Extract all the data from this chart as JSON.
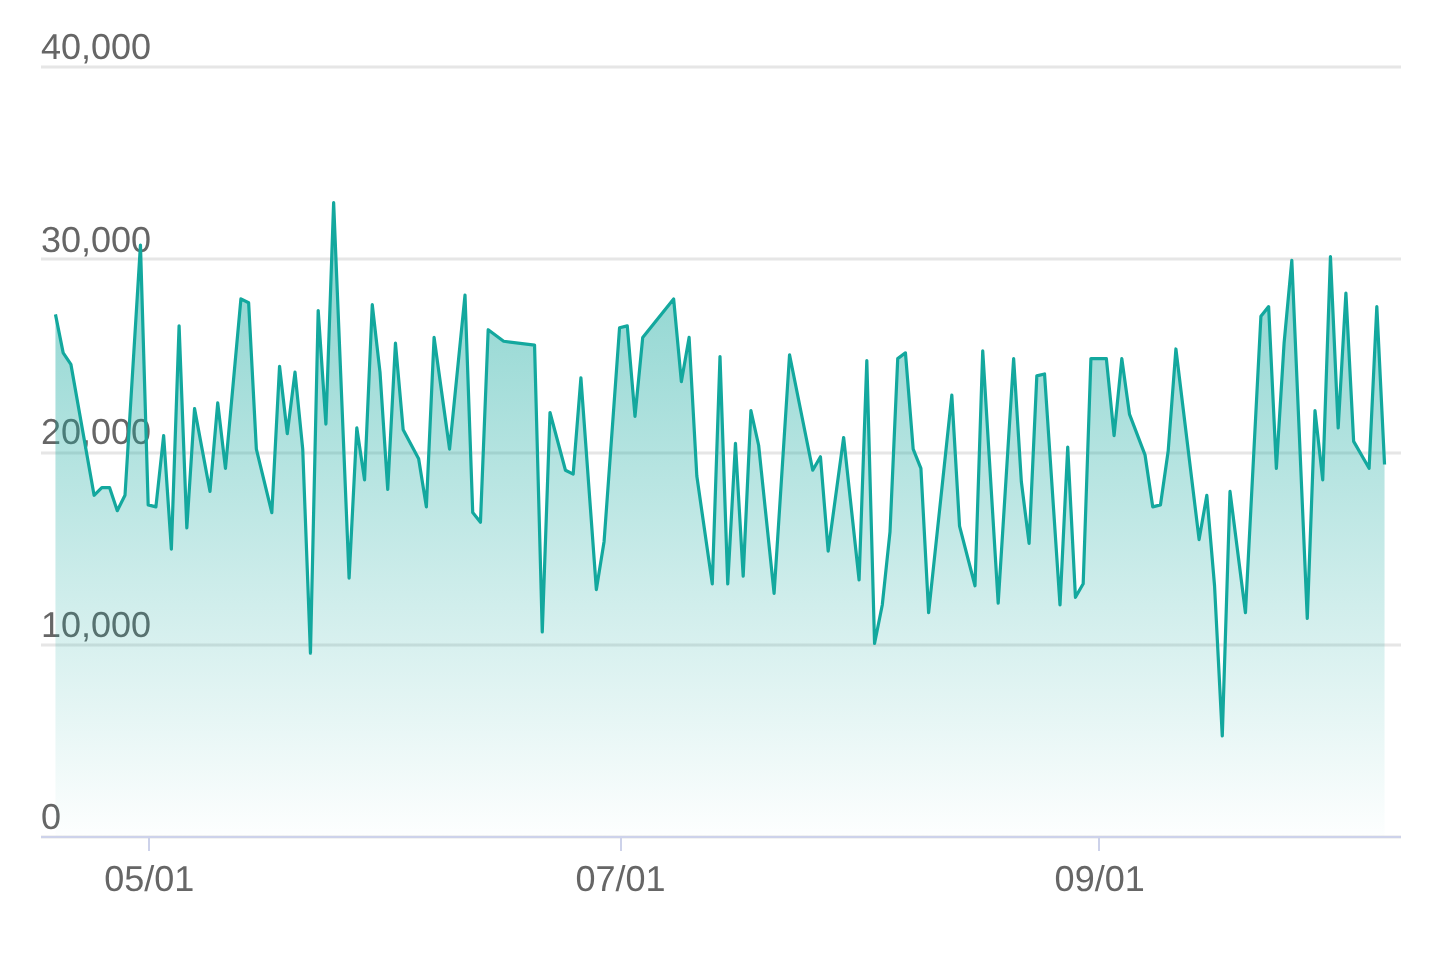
{
  "chart_data": {
    "type": "area",
    "x": [
      "--04-19",
      "--04-20",
      "--04-21",
      "--04-24",
      "--04-25",
      "--04-26",
      "--04-27",
      "--04-28",
      "--04-30",
      "--05-01",
      "--05-02",
      "--05-03",
      "--05-04",
      "--05-05",
      "--05-06",
      "--05-07",
      "--05-09",
      "--05-10",
      "--05-11",
      "--05-13",
      "--05-14",
      "--05-15",
      "--05-17",
      "--05-18",
      "--05-19",
      "--05-20",
      "--05-21",
      "--05-22",
      "--05-23",
      "--05-24",
      "--05-25",
      "--05-27",
      "--05-28",
      "--05-29",
      "--05-30",
      "--05-31",
      "--06-01",
      "--06-02",
      "--06-03",
      "--06-05",
      "--06-06",
      "--06-07",
      "--06-09",
      "--06-11",
      "--06-12",
      "--06-13",
      "--06-14",
      "--06-16",
      "--06-20",
      "--06-21",
      "--06-22",
      "--06-24",
      "--06-25",
      "--06-26",
      "--06-28",
      "--06-29",
      "--07-01",
      "--07-02",
      "--07-03",
      "--07-04",
      "--07-08",
      "--07-09",
      "--07-10",
      "--07-11",
      "--07-13",
      "--07-14",
      "--07-15",
      "--07-16",
      "--07-17",
      "--07-18",
      "--07-19",
      "--07-21",
      "--07-23",
      "--07-26",
      "--07-27",
      "--07-28",
      "--07-30",
      "--08-01",
      "--08-02",
      "--08-03",
      "--08-04",
      "--08-05",
      "--08-06",
      "--08-07",
      "--08-08",
      "--08-09",
      "--08-10",
      "--08-13",
      "--08-14",
      "--08-16",
      "--08-17",
      "--08-19",
      "--08-21",
      "--08-22",
      "--08-23",
      "--08-24",
      "--08-25",
      "--08-27",
      "--08-28",
      "--08-29",
      "--08-30",
      "--08-31",
      "--09-02",
      "--09-03",
      "--09-04",
      "--09-05",
      "--09-07",
      "--09-08",
      "--09-09",
      "--09-10",
      "--09-11",
      "--09-14",
      "--09-15",
      "--09-16",
      "--09-17",
      "--09-18",
      "--09-20",
      "--09-22",
      "--09-23",
      "--09-24",
      "--09-25",
      "--09-26",
      "--09-28",
      "--09-29",
      "--09-30",
      "--10-01",
      "--10-02",
      "--10-03",
      "--10-04",
      "--10-06",
      "--10-07",
      "--10-08"
    ],
    "series": [
      {
        "color": "#13a89e",
        "values": [
          27100,
          25100,
          24500,
          17700,
          18100,
          18100,
          16900,
          17700,
          30700,
          17200,
          17100,
          20800,
          14900,
          26500,
          16000,
          22200,
          17900,
          22500,
          19100,
          27900,
          27700,
          20100,
          16800,
          24400,
          20900,
          24100,
          20100,
          9500,
          27300,
          21400,
          32900,
          13400,
          21200,
          18500,
          27600,
          24100,
          18000,
          25600,
          21100,
          19600,
          17100,
          25900,
          20100,
          28100,
          16800,
          16300,
          26300,
          25700,
          25500,
          10600,
          22000,
          19000,
          18800,
          23800,
          12800,
          15300,
          26400,
          26500,
          21800,
          25900,
          27900,
          23600,
          25900,
          18700,
          13100,
          24900,
          13100,
          20400,
          13500,
          22100,
          20300,
          12600,
          25000,
          19000,
          19700,
          14800,
          20700,
          13300,
          24700,
          10000,
          12000,
          15800,
          24800,
          25100,
          20100,
          19100,
          11600,
          22900,
          16100,
          13000,
          25200,
          12100,
          24800,
          18400,
          15200,
          23900,
          24000,
          12000,
          20200,
          12400,
          13100,
          24800,
          24800,
          20800,
          24800,
          21900,
          19800,
          17100,
          17200,
          20000,
          25300,
          15400,
          17700,
          13000,
          5200,
          17900,
          11600,
          27000,
          27500,
          19100,
          25600,
          29900,
          11300,
          22100,
          18500,
          30100,
          21200,
          28200,
          20500,
          19100,
          27500,
          19300
        ]
      }
    ],
    "xlim": [
      "--04-17",
      "--10-10"
    ],
    "xticks": [
      {
        "value": "--05-01",
        "label": "05/01"
      },
      {
        "value": "--07-01",
        "label": "07/01"
      },
      {
        "value": "--09-01",
        "label": "09/01"
      }
    ],
    "ylim": [
      0,
      40000
    ],
    "yticks": [
      {
        "value": 0,
        "label": "0"
      },
      {
        "value": 10000,
        "label": "10,000"
      },
      {
        "value": 20000,
        "label": "20,000"
      },
      {
        "value": 30000,
        "label": "30,000"
      },
      {
        "value": 40000,
        "label": "40,000"
      }
    ],
    "grid": "y"
  }
}
